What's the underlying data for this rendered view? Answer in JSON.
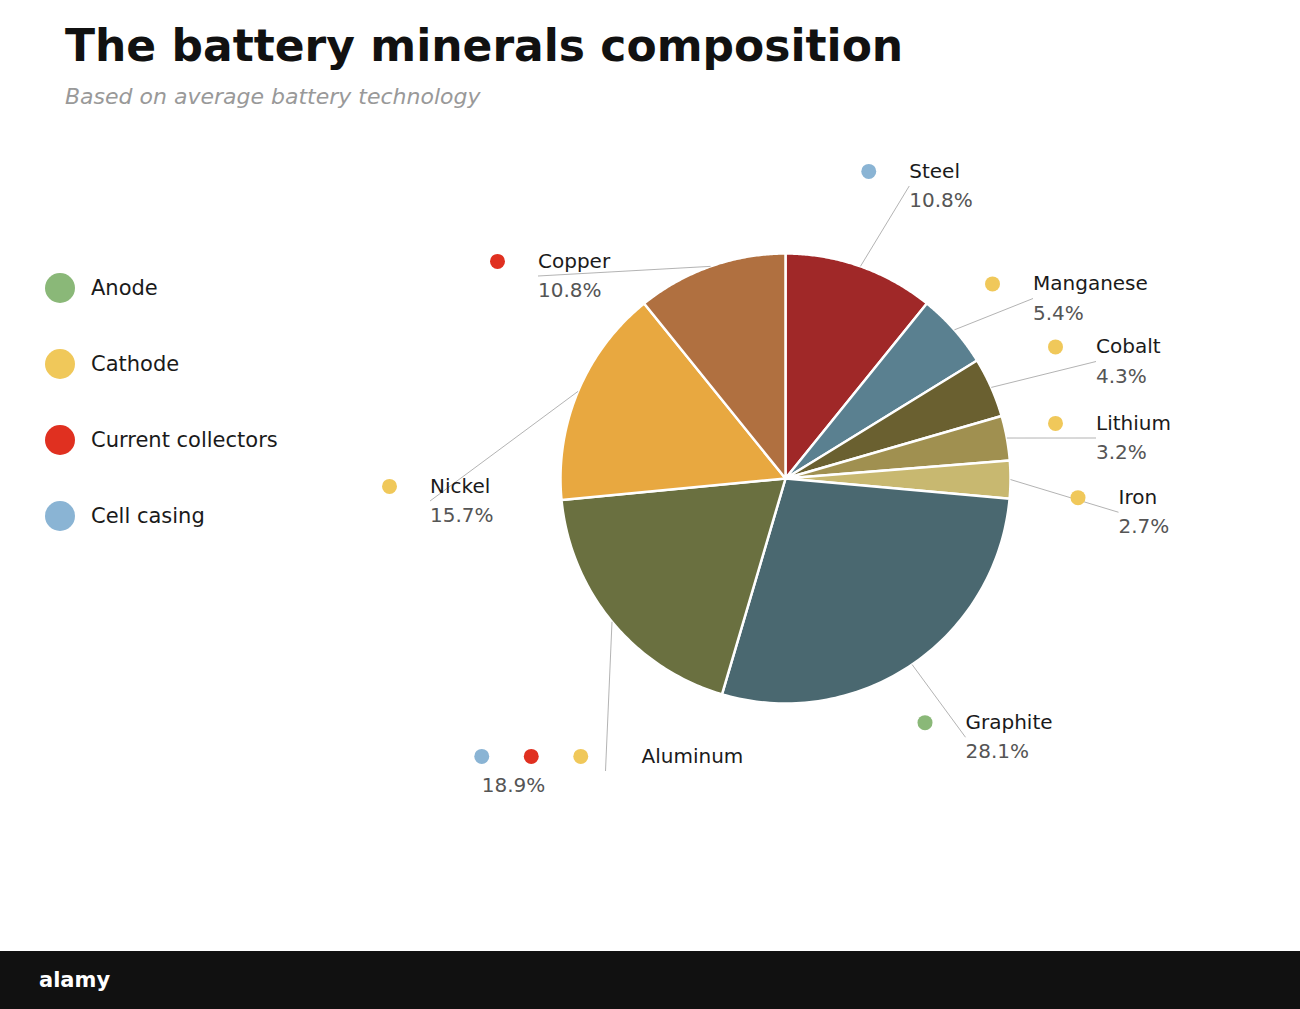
{
  "chart_data": {
    "type": "pie",
    "title": "The battery minerals composition",
    "subtitle": "Based on average battery technology",
    "categories": [
      "Steel",
      "Manganese",
      "Cobalt",
      "Lithium",
      "Iron",
      "Graphite",
      "Aluminum",
      "Nickel",
      "Copper"
    ],
    "values": [
      10.8,
      5.4,
      4.3,
      3.2,
      2.7,
      28.1,
      18.9,
      15.7,
      10.8
    ],
    "value_labels": [
      "10.8%",
      "5.4%",
      "4.3%",
      "3.2%",
      "2.7%",
      "28.1%",
      "18.9%",
      "15.7%",
      "10.8%"
    ],
    "colors": [
      "#a02828",
      "#5a8090",
      "#6a6030",
      "#a09050",
      "#c8b870",
      "#4a6870",
      "#6a7040",
      "#e8a840",
      "#b07040"
    ],
    "dot_colors": [
      [
        "#8ab4d4"
      ],
      [
        "#f0c85a"
      ],
      [
        "#f0c85a"
      ],
      [
        "#f0c85a"
      ],
      [
        "#f0c85a"
      ],
      [
        "#8ab878"
      ],
      [
        "#8ab4d4",
        "#e03020",
        "#f0c85a"
      ],
      [
        "#f0c85a"
      ],
      [
        "#e03020"
      ]
    ],
    "legend_entries": [
      {
        "name": "Anode",
        "color": "#8ab878"
      },
      {
        "name": "Cathode",
        "color": "#f0c85a"
      },
      {
        "name": "Current collectors",
        "color": "#e03020"
      },
      {
        "name": "Cell casing",
        "color": "#8ab4d4"
      }
    ],
    "data_labels": true,
    "annotations": [
      "alamy"
    ]
  }
}
